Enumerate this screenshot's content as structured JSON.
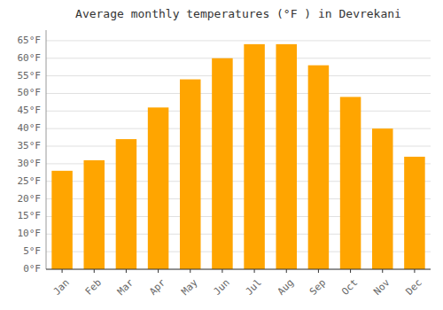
{
  "chart_data": {
    "type": "bar",
    "title": "Average monthly temperatures (°F ) in Devrekani",
    "categories": [
      "Jan",
      "Feb",
      "Mar",
      "Apr",
      "May",
      "Jun",
      "Jul",
      "Aug",
      "Sep",
      "Oct",
      "Nov",
      "Dec"
    ],
    "values": [
      28,
      31,
      37,
      46,
      54,
      60,
      64,
      64,
      58,
      49,
      40,
      32
    ],
    "color": "#FFA500",
    "ylim": [
      0,
      68
    ],
    "yticks": [
      {
        "value": 0,
        "label": "0°F"
      },
      {
        "value": 5,
        "label": "5°F"
      },
      {
        "value": 10,
        "label": "10°F"
      },
      {
        "value": 15,
        "label": "15°F"
      },
      {
        "value": 20,
        "label": "20°F"
      },
      {
        "value": 25,
        "label": "25°F"
      },
      {
        "value": 30,
        "label": "30°F"
      },
      {
        "value": 35,
        "label": "35°F"
      },
      {
        "value": 40,
        "label": "40°F"
      },
      {
        "value": 45,
        "label": "45°F"
      },
      {
        "value": 50,
        "label": "50°F"
      },
      {
        "value": 55,
        "label": "55°F"
      },
      {
        "value": 60,
        "label": "60°F"
      },
      {
        "value": 65,
        "label": "65°F"
      }
    ],
    "grid": true
  }
}
